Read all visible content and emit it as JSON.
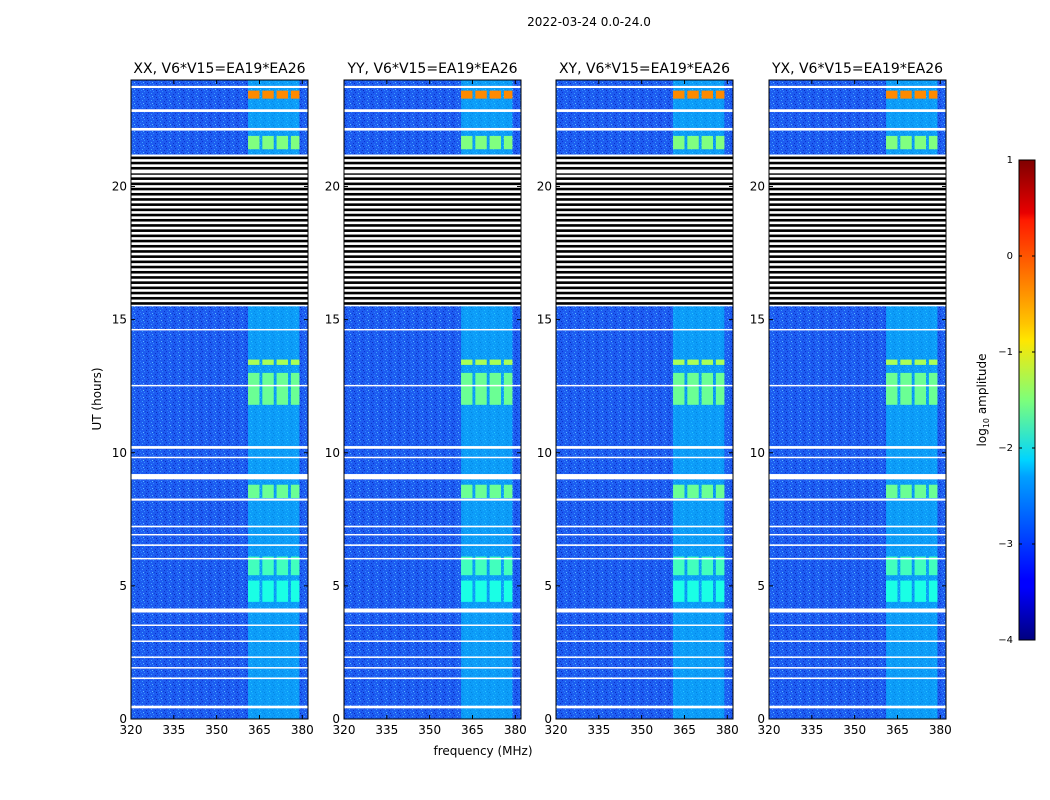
{
  "figure_title": "2022-03-24 0.0-24.0",
  "chart_data": {
    "type": "heatmap",
    "title": "2022-03-24 0.0-24.0",
    "xlabel": "frequency (MHz)",
    "ylabel": "UT (hours)",
    "xlim": [
      320,
      382
    ],
    "ylim": [
      0,
      24
    ],
    "x_ticks": [
      320,
      335,
      350,
      365,
      380
    ],
    "y_ticks": [
      0,
      5,
      10,
      15,
      20
    ],
    "panels": [
      {
        "name": "XX",
        "title": "XX, V6*V15=EA19*EA26"
      },
      {
        "name": "YY",
        "title": "YY, V6*V15=EA19*EA26"
      },
      {
        "name": "XY",
        "title": "XY, V6*V15=EA19*EA26"
      },
      {
        "name": "YX",
        "title": "YX, V6*V15=EA19*EA26"
      }
    ],
    "background_level_log10": -2.9,
    "rfi_band_mhz": [
      361,
      379
    ],
    "rfi_channels_mhz": [
      [
        361,
        365
      ],
      [
        366,
        370
      ],
      [
        371,
        375
      ],
      [
        376,
        379
      ]
    ],
    "strong_rfi_events": [
      {
        "ut_start": 23.3,
        "ut_end": 23.6,
        "level_log10": -0.3
      },
      {
        "ut_start": 21.4,
        "ut_end": 21.9,
        "level_log10": -1.5
      },
      {
        "ut_start": 13.3,
        "ut_end": 13.5,
        "level_log10": -1.3
      },
      {
        "ut_start": 11.8,
        "ut_end": 13.0,
        "level_log10": -1.6
      },
      {
        "ut_start": 8.3,
        "ut_end": 8.8,
        "level_log10": -1.6
      },
      {
        "ut_start": 5.4,
        "ut_end": 6.1,
        "level_log10": -1.8
      },
      {
        "ut_start": 4.4,
        "ut_end": 5.2,
        "level_log10": -2.0
      }
    ],
    "flagged_ut_ranges": [
      [
        15.5,
        21.2
      ],
      [
        23.7,
        23.78
      ],
      [
        22.8,
        22.9
      ],
      [
        22.1,
        22.2
      ],
      [
        20.5,
        20.55
      ],
      [
        14.6,
        14.65
      ],
      [
        12.5,
        12.55
      ],
      [
        10.15,
        10.25
      ],
      [
        9.8,
        9.85
      ],
      [
        9.0,
        9.2
      ],
      [
        8.2,
        8.28
      ],
      [
        7.2,
        7.26
      ],
      [
        6.9,
        6.95
      ],
      [
        6.5,
        6.56
      ],
      [
        6.0,
        6.05
      ],
      [
        4.0,
        4.15
      ],
      [
        3.5,
        3.55
      ],
      [
        2.9,
        2.95
      ],
      [
        2.3,
        2.35
      ],
      [
        1.9,
        1.95
      ],
      [
        1.5,
        1.56
      ],
      [
        0.4,
        0.5
      ]
    ],
    "colorbar": {
      "label": "log10 amplitude",
      "label_main": "log",
      "label_sub": "10",
      "label_rest": " amplitude",
      "min": -4,
      "max": 1,
      "ticks": [
        "1",
        "0",
        "−1",
        "−2",
        "−3",
        "−4"
      ],
      "tick_values": [
        1,
        0,
        -1,
        -2,
        -3,
        -4
      ],
      "colormap": "jet"
    }
  }
}
